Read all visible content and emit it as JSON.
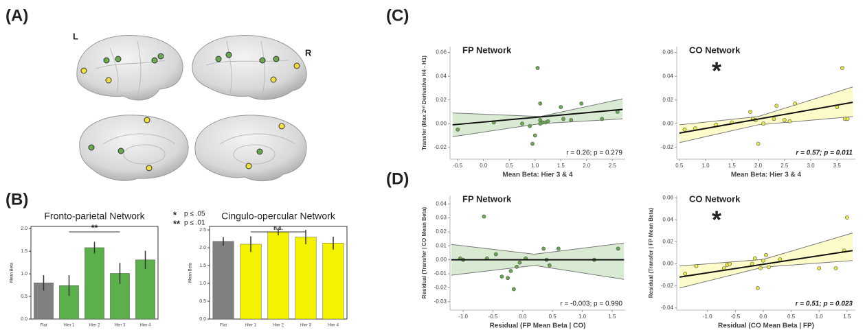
{
  "labels": {
    "a": "(A)",
    "b": "(B)",
    "c": "(C)",
    "d": "(D)",
    "left": "L",
    "right": "R"
  },
  "significance_key": [
    {
      "symbol": "*",
      "label": "p ≤ .05"
    },
    {
      "symbol": "**",
      "label": "p ≤ .01"
    }
  ],
  "chart_data": [
    {
      "type": "bar",
      "title": "Fronto-parietal Network",
      "ylabel": "Mean Beta",
      "categories": [
        "Flat",
        "Hier 1",
        "Hier 2",
        "Hier 3",
        "Hier 4"
      ],
      "values": [
        0.8,
        0.74,
        1.58,
        1.01,
        1.31
      ],
      "errors": [
        0.17,
        0.23,
        0.13,
        0.23,
        0.2
      ],
      "colors": [
        "#808080",
        "#5cb04c",
        "#5cb04c",
        "#5cb04c",
        "#5cb04c"
      ],
      "ylim": [
        0,
        2.05
      ],
      "yticks": [
        {
          "value": 0,
          "label": "0.0"
        },
        0.5,
        {
          "value": 1,
          "label": "1.0"
        },
        1.5,
        {
          "value": 2,
          "label": "2.0"
        }
      ],
      "significance": {
        "label": "**",
        "span": [
          1,
          3
        ]
      }
    },
    {
      "type": "bar",
      "title": "Cingulo-opercular Network",
      "ylabel": "Mean Beta",
      "categories": [
        "Flat",
        "Hier 1",
        "Hier 2",
        "Hier 3",
        "Hier 4"
      ],
      "values": [
        2.18,
        2.1,
        2.45,
        2.3,
        2.13
      ],
      "errors": [
        0.12,
        0.22,
        0.1,
        0.2,
        0.18
      ],
      "colors": [
        "#808080",
        "#f5f200",
        "#f5f200",
        "#f5f200",
        "#f5f200"
      ],
      "ylim": [
        0,
        2.6
      ],
      "yticks": [
        {
          "value": 0,
          "label": "0.0"
        },
        0.5,
        {
          "value": 1,
          "label": "1.0"
        },
        1.5,
        {
          "value": 2,
          "label": "2.0"
        },
        2.5
      ],
      "significance": {
        "label": "n.s.",
        "span": [
          1,
          3
        ]
      }
    },
    {
      "type": "scatter",
      "title": "FP Network",
      "xlabel": "Mean Beta: Hier 3 & 4",
      "ylabel": "Transfer (Max 2ⁿᵈ Derivative H4 - H1)",
      "stat": "r = 0.26; p = 0.279",
      "significant": false,
      "color": "#6aa84f",
      "band_color": "#d9ead3",
      "x": [
        -0.5,
        0.2,
        0.75,
        0.9,
        0.95,
        1.0,
        1.05,
        1.1,
        1.1,
        1.15,
        1.2,
        1.25,
        1.5,
        1.55,
        1.7,
        1.9,
        2.3,
        2.6,
        1.1
      ],
      "y": [
        -0.005,
        0.001,
        0,
        -0.002,
        -0.017,
        -0.01,
        0.047,
        0.017,
        0.003,
        0.001,
        0.001,
        0.002,
        0.014,
        0.004,
        0.003,
        0.017,
        0.004,
        0.01,
        0
      ],
      "fit": {
        "x": [
          -0.6,
          2.7
        ],
        "y": [
          -0.001,
          0.012
        ]
      },
      "band": {
        "x": [
          -0.6,
          1.1,
          2.7
        ],
        "upper": [
          0.009,
          0.006,
          0.021
        ],
        "lower": [
          -0.011,
          0,
          0.004
        ]
      },
      "xlim": [
        -0.65,
        2.75
      ],
      "ylim": [
        -0.03,
        0.065
      ],
      "xticks": [
        -0.5,
        {
          "value": 0,
          "label": "0.0"
        },
        0.5,
        {
          "value": 1,
          "label": "1.0"
        },
        1.5,
        {
          "value": 2,
          "label": "2.0"
        },
        2.5
      ],
      "yticks": [
        -0.02,
        {
          "value": 0,
          "label": "0.00"
        },
        0.02,
        0.04,
        0.06
      ]
    },
    {
      "type": "scatter",
      "title": "CO Network",
      "xlabel": "Mean Beta: Hier 3 & 4",
      "annotation": "*",
      "stat": "r = 0.57; p = 0.011",
      "significant": true,
      "color": "#e8e84a",
      "band_color": "#fdfbc9",
      "x": [
        0.6,
        0.8,
        1.2,
        1.5,
        1.85,
        1.9,
        1.95,
        2.0,
        2.1,
        2.3,
        2.35,
        2.5,
        2.6,
        2.7,
        3.5,
        3.6,
        3.65,
        3.7
      ],
      "y": [
        -0.005,
        -0.004,
        -0.001,
        0.001,
        0.01,
        0.004,
        0.003,
        -0.017,
        0,
        0.004,
        0.015,
        0.003,
        0.002,
        0.017,
        0.014,
        0.047,
        0.004,
        0.004
      ],
      "fit": {
        "x": [
          0.5,
          3.8
        ],
        "y": [
          -0.008,
          0.018
        ]
      },
      "band": {
        "x": [
          0.5,
          2.0,
          3.8
        ],
        "upper": [
          -0.001,
          0.006,
          0.031
        ],
        "lower": [
          -0.016,
          -0.001,
          0.006
        ]
      },
      "xlim": [
        0.45,
        3.85
      ],
      "ylim": [
        -0.03,
        0.065
      ],
      "xticks": [
        0.5,
        {
          "value": 1,
          "label": "1.0"
        },
        1.5,
        {
          "value": 2,
          "label": "2.0"
        },
        2.5,
        {
          "value": 3,
          "label": "3.0"
        },
        3.5
      ],
      "yticks": [
        -0.02,
        {
          "value": 0,
          "label": "0.00"
        },
        0.02,
        0.04,
        0.06
      ]
    },
    {
      "type": "scatter",
      "title": "FP Network",
      "xlabel": "Residual (FP Mean Beta | CO)",
      "ylabel": "Residual (Transfer | CO Mean Beta)",
      "stat": "r = -0.003; p = 0.990",
      "significant": false,
      "color": "#6aa84f",
      "band_color": "#d9ead3",
      "x": [
        -1.05,
        -1.0,
        -0.65,
        -0.6,
        -0.45,
        -0.35,
        -0.25,
        -0.2,
        -0.15,
        -0.1,
        -0.05,
        0.05,
        0.35,
        0.4,
        0.45,
        0.6,
        1.2,
        1.6
      ],
      "y": [
        0.001,
        0,
        0.031,
        0.001,
        0.004,
        -0.012,
        -0.013,
        -0.008,
        -0.021,
        -0.005,
        -0.002,
        0.001,
        0.008,
        0,
        -0.004,
        0.008,
        0,
        0.008
      ],
      "fit": {
        "x": [
          -1.2,
          1.7
        ],
        "y": [
          0,
          0
        ]
      },
      "band": {
        "x": [
          -1.2,
          0.2,
          1.7
        ],
        "upper": [
          0.011,
          0.004,
          0.012
        ],
        "lower": [
          -0.011,
          -0.004,
          -0.014
        ]
      },
      "xlim": [
        -1.22,
        1.72
      ],
      "ylim": [
        -0.036,
        0.046
      ],
      "xticks": [
        {
          "value": -1,
          "label": "-1.0"
        },
        -0.5,
        {
          "value": 0,
          "label": "0.0"
        },
        0.5,
        {
          "value": 1,
          "label": "1.0"
        },
        1.5
      ],
      "yticks": [
        -0.03,
        -0.02,
        -0.01,
        {
          "value": 0,
          "label": "0.00"
        },
        0.01,
        0.02,
        0.03,
        0.04
      ]
    },
    {
      "type": "scatter",
      "title": "CO Network",
      "xlabel": "Residual (CO Mean Beta | FP)",
      "ylabel": "Residual (Transfer | FP Mean Beta)",
      "annotation": "*",
      "stat": "r = 0.51; p = 0.023",
      "significant": true,
      "color": "#e8e84a",
      "band_color": "#fdfbc9",
      "x": [
        -1.4,
        -1.2,
        -0.7,
        -0.65,
        -0.6,
        -0.2,
        -0.15,
        -0.1,
        -0.05,
        0,
        0.05,
        0.1,
        0.3,
        1.0,
        1.3,
        1.45,
        1.5
      ],
      "y": [
        -0.009,
        -0.002,
        -0.004,
        -0.001,
        0,
        0,
        0.005,
        -0.022,
        -0.004,
        0.003,
        0.008,
        -0.003,
        0.004,
        -0.004,
        -0.004,
        0.012,
        0.042
      ],
      "fit": {
        "x": [
          -1.5,
          1.6
        ],
        "y": [
          -0.012,
          0.012
        ]
      },
      "band": {
        "x": [
          -1.5,
          0,
          1.6
        ],
        "upper": [
          -0.002,
          0.004,
          0.028
        ],
        "lower": [
          -0.022,
          -0.003,
          0.003
        ]
      },
      "xlim": [
        -1.55,
        1.65
      ],
      "ylim": [
        -0.042,
        0.062
      ],
      "xticks": [
        {
          "value": -1,
          "label": "-1.0"
        },
        -0.5,
        {
          "value": 0,
          "label": "0.0"
        },
        0.5,
        {
          "value": 1,
          "label": "1.0"
        },
        1.5
      ],
      "yticks": [
        -0.04,
        -0.02,
        {
          "value": 0,
          "label": "0.00"
        },
        0.02,
        0.04,
        0.06
      ]
    }
  ]
}
